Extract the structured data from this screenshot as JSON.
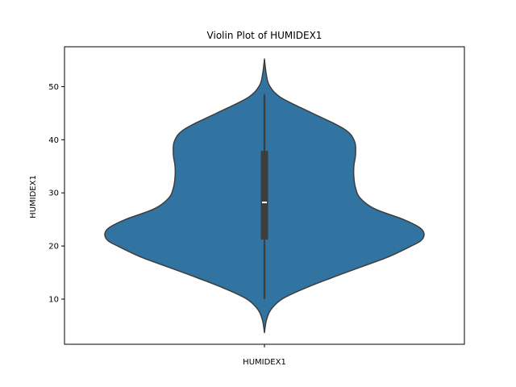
{
  "chart_data": {
    "type": "violin",
    "title": "Violin Plot of HUMIDEX1",
    "xlabel": "",
    "ylabel": "HUMIDEX1",
    "categories": [
      "HUMIDEX1"
    ],
    "ylim": [
      1.5,
      57.5
    ],
    "yticks": [
      10,
      20,
      30,
      40,
      50
    ],
    "grid": false,
    "violin": {
      "fill_color": "#3274a1",
      "edge_color": "#3d3d3d",
      "y_min": 3.7,
      "y_max": 55.2,
      "profile": [
        [
          3.7,
          0.0
        ],
        [
          6.0,
          0.012
        ],
        [
          8.0,
          0.04
        ],
        [
          10.0,
          0.11
        ],
        [
          12.0,
          0.25
        ],
        [
          14.0,
          0.42
        ],
        [
          16.0,
          0.6
        ],
        [
          18.0,
          0.78
        ],
        [
          20.0,
          0.92
        ],
        [
          21.0,
          0.98
        ],
        [
          22.3,
          1.0
        ],
        [
          23.5,
          0.97
        ],
        [
          25.0,
          0.87
        ],
        [
          27.0,
          0.69
        ],
        [
          29.0,
          0.6
        ],
        [
          31.0,
          0.57
        ],
        [
          33.0,
          0.56
        ],
        [
          35.0,
          0.56
        ],
        [
          37.0,
          0.57
        ],
        [
          39.0,
          0.57
        ],
        [
          40.0,
          0.56
        ],
        [
          41.0,
          0.54
        ],
        [
          42.0,
          0.5
        ],
        [
          43.0,
          0.44
        ],
        [
          44.0,
          0.37
        ],
        [
          45.0,
          0.3
        ],
        [
          46.0,
          0.23
        ],
        [
          47.0,
          0.16
        ],
        [
          48.0,
          0.1
        ],
        [
          49.0,
          0.06
        ],
        [
          50.0,
          0.035
        ],
        [
          51.0,
          0.02
        ],
        [
          53.0,
          0.008
        ],
        [
          55.2,
          0.0
        ]
      ]
    },
    "box": {
      "whisker_low": 10.0,
      "q1": 21.2,
      "median": 28.2,
      "q3": 37.9,
      "whisker_high": 48.6,
      "color": "#3d3d3d",
      "median_color": "#ffffff"
    }
  }
}
